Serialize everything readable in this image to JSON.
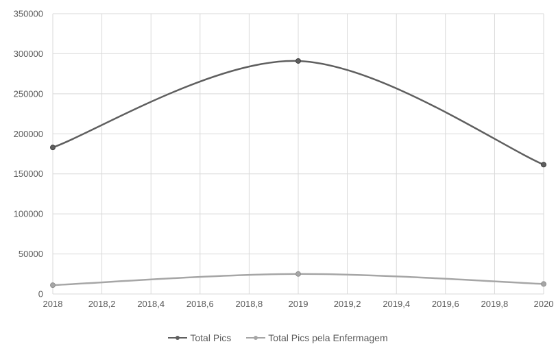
{
  "chart_data": {
    "type": "line",
    "x_ticks": [
      "2018",
      "2018,2",
      "2018,4",
      "2018,6",
      "2018,8",
      "2019",
      "2019,2",
      "2019,4",
      "2019,6",
      "2019,8",
      "2020"
    ],
    "y_ticks": [
      "0",
      "50000",
      "100000",
      "150000",
      "200000",
      "250000",
      "300000",
      "350000"
    ],
    "xlim": [
      2018,
      2020
    ],
    "ylim": [
      0,
      350000
    ],
    "grid": true,
    "smooth": true,
    "legend_position": "bottom",
    "series": [
      {
        "name": "Total Pics",
        "color": "#5f5f5f",
        "x": [
          2018,
          2019,
          2020
        ],
        "y": [
          183000,
          291000,
          161500
        ]
      },
      {
        "name": "Total Pics pela Enfermagem",
        "color": "#a6a6a6",
        "x": [
          2018,
          2019,
          2020
        ],
        "y": [
          11000,
          25000,
          12500
        ]
      }
    ]
  }
}
